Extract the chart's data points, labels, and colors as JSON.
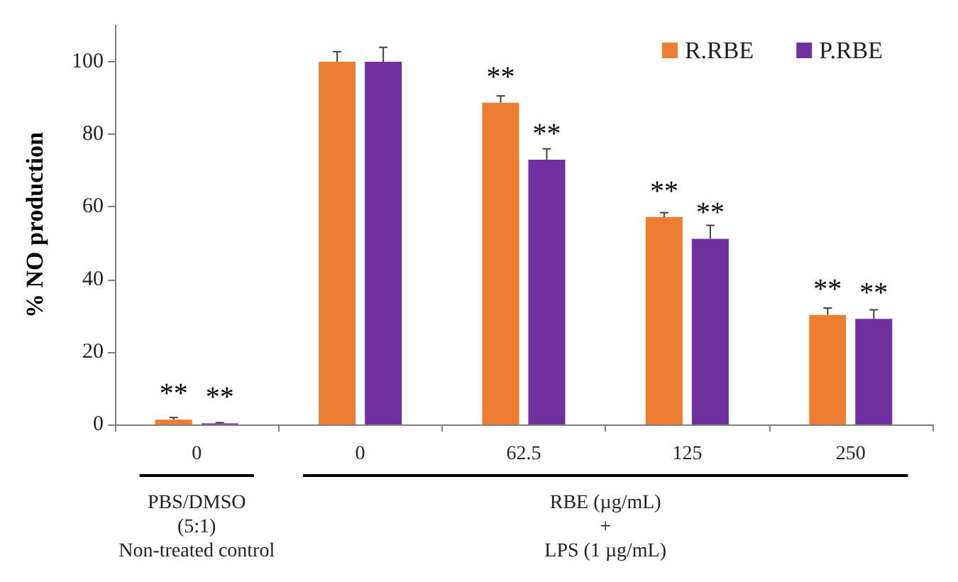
{
  "chart_data": {
    "type": "bar",
    "ylabel": "% NO production",
    "categories": [
      "0",
      "0",
      "62.5",
      "125",
      "250"
    ],
    "series": [
      {
        "name": "R.RBE",
        "color": "#ed7d31",
        "values": [
          1.3,
          100,
          88.7,
          57.2,
          30.2
        ],
        "errors": [
          0.6,
          2.8,
          1.9,
          1.2,
          1.9
        ],
        "value_labels": [
          "**",
          null,
          "**",
          "**",
          "**"
        ]
      },
      {
        "name": "P.RBE",
        "color": "#7030a0",
        "values": [
          0.3,
          100,
          73,
          51.2,
          29.1
        ],
        "errors": [
          0.2,
          4,
          3,
          3.7,
          2.5
        ],
        "value_labels": [
          "**",
          null,
          "**",
          "**",
          "**"
        ]
      }
    ],
    "ylim": [
      0,
      110
    ],
    "yticks": [
      0,
      20,
      40,
      60,
      80,
      100
    ],
    "grid": false,
    "legend": "top right",
    "annotations": [
      "PBS/DMSO\n(5:1)\nNon-treated control",
      "RBE (µg/mL)\n+\nLPS (1 µg/mL)"
    ]
  }
}
